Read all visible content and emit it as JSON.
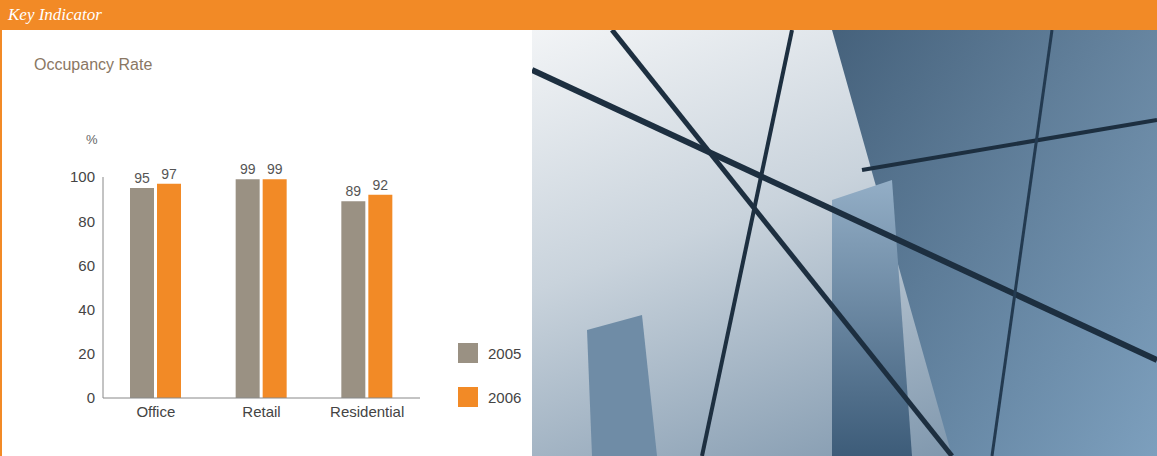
{
  "header": "Key Indicator",
  "chart_data": {
    "type": "bar",
    "title": "Occupancy Rate",
    "y_label": "%",
    "categories": [
      "Office",
      "Retail",
      "Residential"
    ],
    "series": [
      {
        "name": "2005",
        "color": "#9a9183",
        "values": [
          95,
          99,
          89
        ]
      },
      {
        "name": "2006",
        "color": "#f28a26",
        "values": [
          97,
          99,
          92
        ]
      }
    ],
    "ylim": [
      0,
      100
    ],
    "yticks": [
      0,
      20,
      40,
      60,
      80,
      100
    ],
    "grid": false,
    "data_labels": true,
    "legend": "right"
  }
}
